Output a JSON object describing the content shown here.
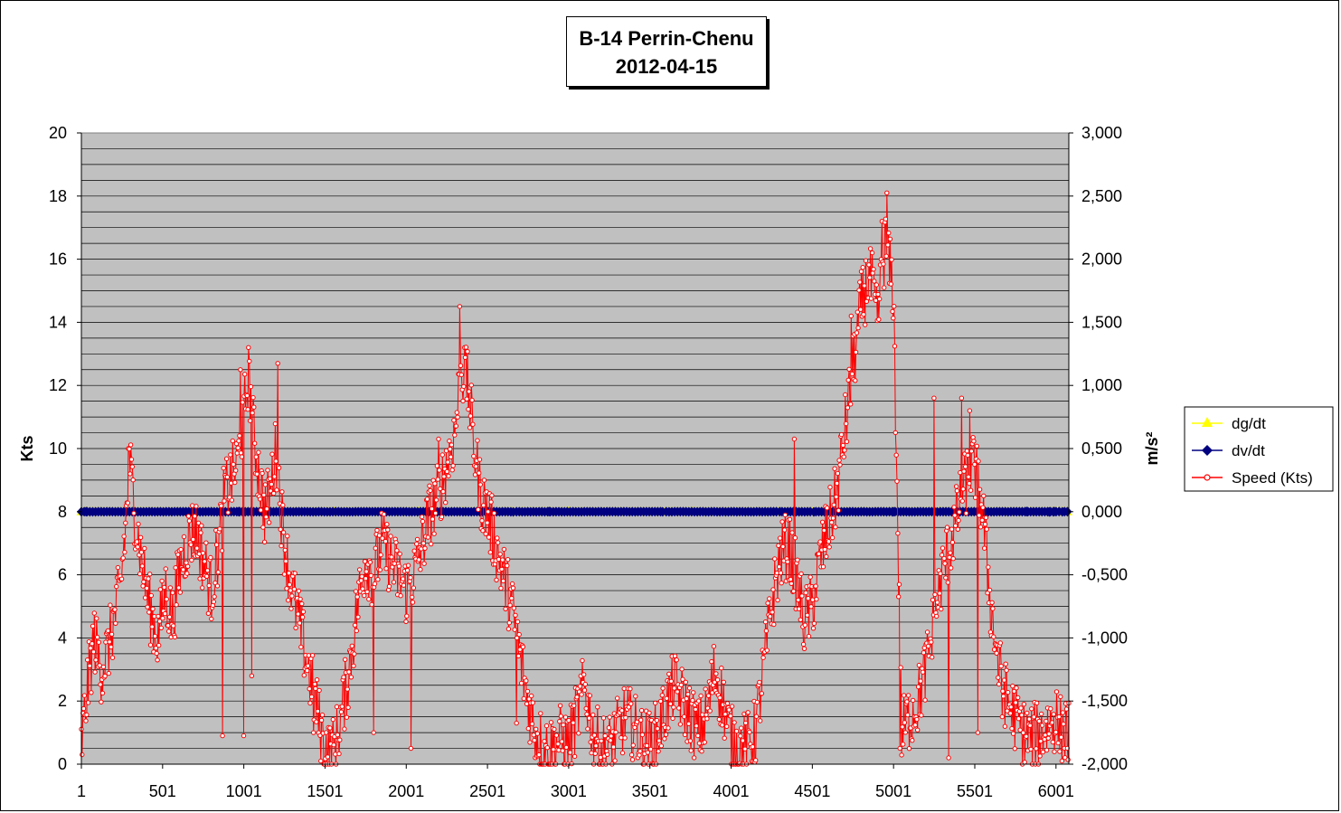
{
  "colors": {
    "plot_background": "#c0c0c0",
    "gridline": "#000000",
    "dg_dt": "#ffff00",
    "dv_dt": "#000080",
    "speed": "#ff0000"
  },
  "chart_data": {
    "type": "line",
    "title": "B-14 Perrin-Chenu",
    "subtitle": "2012-04-15",
    "ylabel_left": "Kts",
    "ylabel_right": "m/s²",
    "xlim": [
      1,
      6080
    ],
    "ylim_left": [
      0,
      20
    ],
    "ylim_right": [
      -2000,
      3000
    ],
    "x_ticks": [
      "1",
      "501",
      "1001",
      "1501",
      "2001",
      "2501",
      "3001",
      "3501",
      "4001",
      "4501",
      "5001",
      "5501",
      "6001"
    ],
    "y_left_ticks": [
      "0",
      "2",
      "4",
      "6",
      "8",
      "10",
      "12",
      "14",
      "16",
      "18",
      "20"
    ],
    "y_right_ticks": [
      "-2,000",
      "-1,500",
      "-1,000",
      "-0,500",
      "0,000",
      "0,500",
      "1,000",
      "1,500",
      "2,000",
      "2,500",
      "3,000"
    ],
    "grid": true,
    "legend_position": "right",
    "series": [
      {
        "name": "dg/dt",
        "axis": "right",
        "marker": "triangle",
        "band_low": [
          -0.35,
          -0.35,
          -0.3,
          -0.3,
          -0.25,
          -0.35,
          -0.3,
          -0.25,
          -0.3,
          -0.35,
          -0.3,
          -0.3,
          -0.3
        ],
        "band_high": [
          0.35,
          0.35,
          0.3,
          0.3,
          0.3,
          0.35,
          0.25,
          0.25,
          0.25,
          0.3,
          0.3,
          0.35,
          0.35
        ],
        "peaks": [
          {
            "x": 30,
            "y": 0.71
          },
          {
            "x": 2080,
            "y": 1.2
          },
          {
            "x": 2090,
            "y": 0.89
          },
          {
            "x": 2660,
            "y": 1.01
          },
          {
            "x": 2890,
            "y": 1.44
          },
          {
            "x": 2880,
            "y": -1.31
          },
          {
            "x": 3000,
            "y": -0.61
          },
          {
            "x": 3600,
            "y": 0.72
          },
          {
            "x": 3760,
            "y": 0.75
          },
          {
            "x": 4940,
            "y": -0.69
          },
          {
            "x": 5290,
            "y": 0.84
          },
          {
            "x": 5480,
            "y": 1.11
          },
          {
            "x": 5840,
            "y": 1.42
          },
          {
            "x": 5990,
            "y": 2.2
          },
          {
            "x": 6010,
            "y": 1.94
          },
          {
            "x": 6040,
            "y": 1.1
          },
          {
            "x": 1560,
            "y": -0.63
          },
          {
            "x": 5460,
            "y": -0.81
          }
        ]
      },
      {
        "name": "dv/dt",
        "axis": "right",
        "marker": "diamond",
        "band_low": [
          -0.3,
          -0.3,
          -0.25,
          -0.25,
          -0.2,
          -0.3,
          -0.25,
          -0.2,
          -0.25,
          -0.3,
          -0.25,
          -0.25,
          -0.25
        ],
        "band_high": [
          0.3,
          0.3,
          0.25,
          0.25,
          0.25,
          0.3,
          0.2,
          0.2,
          0.2,
          0.25,
          0.25,
          0.3,
          0.3
        ],
        "peaks": [
          {
            "x": 30,
            "y": 0.57
          },
          {
            "x": 970,
            "y": 0.6
          },
          {
            "x": 2350,
            "y": -0.79
          },
          {
            "x": 2880,
            "y": 0.92
          },
          {
            "x": 4300,
            "y": 0.74
          },
          {
            "x": 4510,
            "y": 0.56
          },
          {
            "x": 4510,
            "y": -1.03
          },
          {
            "x": 5000,
            "y": -0.9
          },
          {
            "x": 5270,
            "y": -1.07
          },
          {
            "x": 5820,
            "y": 0.82
          },
          {
            "x": 5990,
            "y": 1.34
          },
          {
            "x": 6020,
            "y": 1.25
          },
          {
            "x": 5960,
            "y": -1.04
          },
          {
            "x": 6040,
            "y": -0.92
          },
          {
            "x": 3580,
            "y": -0.53
          },
          {
            "x": 2660,
            "y": -1.13
          }
        ]
      },
      {
        "name": "Speed (Kts)",
        "axis": "left",
        "marker": "circle",
        "x": [
          1,
          40,
          80,
          120,
          160,
          200,
          240,
          280,
          300,
          330,
          370,
          420,
          470,
          520,
          560,
          600,
          650,
          700,
          750,
          800,
          850,
          880,
          920,
          960,
          1000,
          1030,
          1060,
          1100,
          1130,
          1160,
          1200,
          1240,
          1280,
          1320,
          1360,
          1400,
          1440,
          1480,
          1520,
          1560,
          1600,
          1650,
          1700,
          1750,
          1800,
          1850,
          1900,
          1950,
          2000,
          2050,
          2100,
          2150,
          2200,
          2250,
          2300,
          2340,
          2380,
          2420,
          2460,
          2500,
          2550,
          2600,
          2650,
          2700,
          2750,
          2800,
          2850,
          2900,
          2950,
          3000,
          3050,
          3100,
          3150,
          3200,
          3250,
          3300,
          3350,
          3400,
          3450,
          3500,
          3550,
          3600,
          3650,
          3700,
          3750,
          3800,
          3850,
          3900,
          3950,
          4000,
          4050,
          4100,
          4150,
          4200,
          4250,
          4300,
          4350,
          4400,
          4450,
          4500,
          4550,
          4600,
          4650,
          4700,
          4750,
          4800,
          4850,
          4900,
          4950,
          5000,
          5050,
          5100,
          5150,
          5200,
          5250,
          5300,
          5350,
          5400,
          5450,
          5500,
          5550,
          5600,
          5650,
          5700,
          5750,
          5800,
          5850,
          5900,
          5950,
          6000,
          6050
        ],
        "y": [
          0.5,
          2.5,
          4.0,
          3.0,
          3.5,
          4.5,
          5.5,
          8.0,
          9.5,
          8.0,
          6.5,
          5.0,
          4.0,
          5.5,
          4.5,
          6.0,
          7.0,
          7.5,
          6.5,
          5.5,
          7.0,
          8.5,
          9.0,
          9.5,
          11.0,
          12.5,
          10.5,
          9.0,
          8.0,
          8.5,
          10.0,
          7.5,
          6.0,
          5.0,
          4.0,
          3.0,
          2.0,
          1.0,
          0.3,
          0.5,
          1.5,
          3.0,
          5.0,
          6.5,
          6.0,
          7.0,
          6.5,
          6.0,
          5.5,
          6.0,
          7.0,
          8.0,
          8.5,
          9.5,
          10.5,
          12.5,
          12.0,
          10.0,
          8.5,
          8.0,
          7.0,
          6.0,
          5.0,
          3.5,
          2.0,
          1.0,
          0.5,
          0.5,
          0.8,
          0.6,
          1.5,
          2.5,
          1.0,
          0.5,
          0.5,
          1.0,
          1.5,
          1.2,
          0.8,
          0.6,
          1.0,
          1.8,
          2.5,
          2.0,
          1.5,
          1.0,
          1.5,
          3.0,
          2.0,
          0.8,
          0.5,
          0.6,
          1.0,
          3.0,
          5.0,
          6.5,
          7.0,
          6.0,
          4.5,
          5.0,
          6.5,
          7.5,
          8.5,
          10.5,
          12.5,
          14.5,
          15.5,
          14.0,
          16.5,
          15.0,
          1.0,
          1.5,
          2.0,
          3.0,
          4.5,
          6.0,
          7.0,
          8.0,
          9.0,
          9.5,
          8.0,
          5.0,
          3.0,
          2.0,
          1.5,
          1.0,
          0.8,
          1.0,
          1.2,
          1.5,
          1.0
        ],
        "spikes": [
          {
            "x": 1030,
            "y": 13.2
          },
          {
            "x": 2330,
            "y": 14.5
          },
          {
            "x": 4960,
            "y": 18.1
          },
          {
            "x": 4870,
            "y": 16.2
          },
          {
            "x": 4930,
            "y": 17.2
          },
          {
            "x": 4740,
            "y": 14.2
          },
          {
            "x": 5420,
            "y": 11.6
          },
          {
            "x": 5470,
            "y": 11.2
          },
          {
            "x": 5520,
            "y": 11.4
          },
          {
            "x": 290,
            "y": 10.0
          },
          {
            "x": 1210,
            "y": 12.7
          },
          {
            "x": 980,
            "y": 12.5
          },
          {
            "x": 2360,
            "y": 13.2
          },
          {
            "x": 2200,
            "y": 10.3
          },
          {
            "x": 5250,
            "y": 11.6
          },
          {
            "x": 4390,
            "y": 10.3
          }
        ],
        "dips": [
          {
            "x": 1050,
            "y": 2.8
          },
          {
            "x": 1000,
            "y": 0.9
          },
          {
            "x": 870,
            "y": 0.9
          },
          {
            "x": 1430,
            "y": 1.0
          },
          {
            "x": 1800,
            "y": 1.0
          },
          {
            "x": 2030,
            "y": 0.5
          },
          {
            "x": 2680,
            "y": 1.3
          },
          {
            "x": 5040,
            "y": 0.5
          },
          {
            "x": 5340,
            "y": 0.2
          },
          {
            "x": 5520,
            "y": 1.0
          },
          {
            "x": 5670,
            "y": 1.5
          },
          {
            "x": 6020,
            "y": 1.5
          }
        ]
      }
    ]
  }
}
